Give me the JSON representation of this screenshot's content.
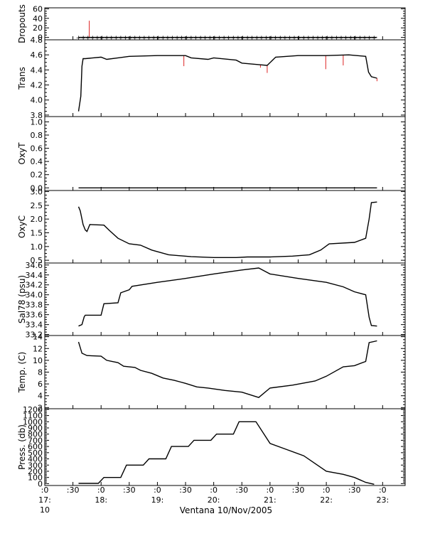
{
  "figure": {
    "xlabel": "Ventana 10/Nov/2005",
    "x_tick_labels": [
      {
        "x": 17.0,
        "lines": [
          ":0",
          "17:",
          "10"
        ]
      },
      {
        "x": 17.5,
        "lines": [
          ":30",
          "",
          ""
        ]
      },
      {
        "x": 18.0,
        "lines": [
          ":0",
          "18:",
          ""
        ]
      },
      {
        "x": 18.5,
        "lines": [
          ":30",
          "",
          ""
        ]
      },
      {
        "x": 19.0,
        "lines": [
          ":0",
          "19:",
          ""
        ]
      },
      {
        "x": 19.5,
        "lines": [
          ":30",
          "",
          ""
        ]
      },
      {
        "x": 20.0,
        "lines": [
          ":0",
          "20:",
          ""
        ]
      },
      {
        "x": 20.5,
        "lines": [
          ":30",
          "",
          ""
        ]
      },
      {
        "x": 21.0,
        "lines": [
          ":0",
          "21:",
          ""
        ]
      },
      {
        "x": 21.5,
        "lines": [
          ":30",
          "",
          ""
        ]
      },
      {
        "x": 22.0,
        "lines": [
          ":0",
          "22:",
          ""
        ]
      },
      {
        "x": 22.5,
        "lines": [
          ":30",
          "",
          ""
        ]
      },
      {
        "x": 23.0,
        "lines": [
          ":0",
          "23:",
          ""
        ]
      }
    ],
    "colors": {
      "trace": "#000000",
      "raw": "#dd2222",
      "axis": "#000000"
    }
  },
  "chart_data": [
    {
      "type": "scatter",
      "ylabel": "Dropouts",
      "xlim": [
        17.0,
        23.4
      ],
      "ylim": [
        -5,
        62
      ],
      "yticks": [
        0,
        20,
        40,
        60
      ],
      "yticklabels": [
        "0",
        "20",
        "40",
        "60"
      ],
      "series": [
        {
          "role": "trace",
          "x": [
            17.6,
            22.9
          ],
          "y": [
            0,
            0
          ]
        }
      ],
      "marker_step": 0.0833,
      "spikes": [
        {
          "x": 17.79,
          "y": 35
        }
      ]
    },
    {
      "type": "line",
      "ylabel": "Trans",
      "xlim": [
        17.0,
        23.4
      ],
      "ylim": [
        3.78,
        4.8
      ],
      "yticks": [
        3.8,
        4.0,
        4.2,
        4.4,
        4.6,
        4.8
      ],
      "yticklabels": [
        "3.8",
        "4.0",
        "4.2",
        "4.4",
        "4.6",
        "4.8"
      ],
      "series": [
        {
          "role": "trace",
          "x": [
            17.6,
            17.62,
            17.64,
            17.66,
            17.68,
            17.72,
            18.0,
            18.1,
            18.3,
            18.5,
            19.0,
            19.5,
            19.6,
            19.9,
            20.0,
            20.4,
            20.5,
            20.8,
            20.95,
            21.1,
            21.5,
            22.0,
            22.4,
            22.7,
            22.75,
            22.8,
            22.9
          ],
          "y": [
            3.85,
            3.95,
            4.05,
            4.45,
            4.55,
            4.55,
            4.57,
            4.54,
            4.56,
            4.58,
            4.59,
            4.59,
            4.56,
            4.54,
            4.56,
            4.53,
            4.49,
            4.47,
            4.46,
            4.57,
            4.59,
            4.59,
            4.6,
            4.58,
            4.37,
            4.31,
            4.29
          ]
        }
      ],
      "spikes": [
        {
          "x": 19.47,
          "y": 4.45
        },
        {
          "x": 20.83,
          "y": 4.43
        },
        {
          "x": 20.95,
          "y": 4.36
        },
        {
          "x": 21.99,
          "y": 4.41
        },
        {
          "x": 22.3,
          "y": 4.46
        },
        {
          "x": 22.9,
          "y": 4.25
        }
      ]
    },
    {
      "type": "line",
      "ylabel": "OxyT",
      "xlim": [
        17.0,
        23.4
      ],
      "ylim": [
        -0.04,
        1.08
      ],
      "yticks": [
        0.0,
        0.2,
        0.4,
        0.6,
        0.8,
        1.0
      ],
      "yticklabels": [
        "0.0",
        "0.2",
        "0.4",
        "0.6",
        "0.8",
        "1.0"
      ],
      "series": [
        {
          "role": "trace",
          "x": [
            17.6,
            22.9
          ],
          "y": [
            0,
            0
          ]
        }
      ],
      "spikes": []
    },
    {
      "type": "line",
      "ylabel": "OxyC",
      "xlim": [
        17.0,
        23.4
      ],
      "ylim": [
        0.4,
        3.04
      ],
      "yticks": [
        0.5,
        1.0,
        1.5,
        2.0,
        2.5,
        3.0
      ],
      "yticklabels": [
        "0.5",
        "1.0",
        "1.5",
        "2.0",
        "2.5",
        "3.0"
      ],
      "series": [
        {
          "role": "trace",
          "x": [
            17.6,
            17.63,
            17.68,
            17.72,
            17.75,
            17.8,
            18.05,
            18.15,
            18.3,
            18.5,
            18.7,
            18.9,
            19.2,
            19.6,
            20.0,
            20.4,
            20.6,
            21.0,
            21.4,
            21.7,
            21.9,
            22.05,
            22.5,
            22.7,
            22.76,
            22.8,
            22.9
          ],
          "y": [
            2.45,
            2.3,
            1.8,
            1.6,
            1.55,
            1.8,
            1.78,
            1.58,
            1.3,
            1.1,
            1.05,
            0.87,
            0.7,
            0.63,
            0.6,
            0.6,
            0.62,
            0.62,
            0.65,
            0.7,
            0.87,
            1.1,
            1.15,
            1.3,
            2.0,
            2.6,
            2.62
          ]
        }
      ],
      "spikes": []
    },
    {
      "type": "line",
      "ylabel": "Sal78 (psu)",
      "xlim": [
        17.0,
        23.4
      ],
      "ylim": [
        33.18,
        34.64
      ],
      "yticks": [
        33.2,
        33.4,
        33.6,
        33.8,
        34.0,
        34.2,
        34.4,
        34.6
      ],
      "yticklabels": [
        "33.2",
        "33.4",
        "33.6",
        "33.8",
        "34.0",
        "34.2",
        "34.4",
        "34.6"
      ],
      "series": [
        {
          "role": "trace",
          "x": [
            17.6,
            17.66,
            17.7,
            17.72,
            18.0,
            18.05,
            18.3,
            18.35,
            18.5,
            18.55,
            19.0,
            19.5,
            20.0,
            20.5,
            20.8,
            21.0,
            21.5,
            22.0,
            22.3,
            22.5,
            22.7,
            22.76,
            22.8,
            22.9
          ],
          "y": [
            33.37,
            33.4,
            33.56,
            33.59,
            33.59,
            33.82,
            33.84,
            34.04,
            34.1,
            34.17,
            34.25,
            34.33,
            34.42,
            34.5,
            34.54,
            34.42,
            34.33,
            34.25,
            34.16,
            34.06,
            34.0,
            33.55,
            33.38,
            33.37
          ]
        }
      ],
      "spikes": []
    },
    {
      "type": "line",
      "ylabel": "Temp. (C)",
      "xlim": [
        17.0,
        23.4
      ],
      "ylim": [
        1.8,
        14.2
      ],
      "yticks": [
        2,
        4,
        6,
        8,
        10,
        12,
        14
      ],
      "yticklabels": [
        "2",
        "4",
        "6",
        "8",
        "10",
        "12",
        "14"
      ],
      "series": [
        {
          "role": "trace",
          "x": [
            17.6,
            17.66,
            17.75,
            18.0,
            18.1,
            18.3,
            18.4,
            18.6,
            18.7,
            18.9,
            19.1,
            19.3,
            19.5,
            19.7,
            19.9,
            20.2,
            20.5,
            20.8,
            21.0,
            21.4,
            21.8,
            22.0,
            22.3,
            22.5,
            22.7,
            22.76,
            22.9
          ],
          "y": [
            13.1,
            11.2,
            10.8,
            10.7,
            10.0,
            9.6,
            9.0,
            8.8,
            8.3,
            7.8,
            7.0,
            6.6,
            6.1,
            5.5,
            5.3,
            4.9,
            4.6,
            3.7,
            5.3,
            5.8,
            6.5,
            7.3,
            8.9,
            9.1,
            9.8,
            13.0,
            13.3
          ]
        }
      ],
      "spikes": []
    },
    {
      "type": "line",
      "ylabel": "Press. (db)",
      "xlim": [
        17.0,
        23.4
      ],
      "ylim": [
        -30,
        1210
      ],
      "yticks": [
        0,
        100,
        200,
        300,
        400,
        500,
        600,
        700,
        800,
        900,
        1000,
        1100,
        1200
      ],
      "yticklabels": [
        "0",
        "100",
        "200",
        "300",
        "400",
        "500",
        "600",
        "700",
        "800",
        "900",
        "1000",
        "1100",
        "1200"
      ],
      "series": [
        {
          "role": "trace",
          "x": [
            17.6,
            17.65,
            17.95,
            18.05,
            18.35,
            18.45,
            18.75,
            18.85,
            19.15,
            19.25,
            19.55,
            19.65,
            19.95,
            20.05,
            20.35,
            20.45,
            20.75,
            21.0,
            21.3,
            21.6,
            22.0,
            22.3,
            22.5,
            22.7,
            22.85
          ],
          "y": [
            5,
            5,
            5,
            100,
            100,
            300,
            300,
            400,
            400,
            600,
            600,
            700,
            700,
            800,
            800,
            1000,
            1000,
            650,
            550,
            450,
            200,
            150,
            100,
            20,
            -10
          ]
        }
      ],
      "spikes": []
    }
  ]
}
